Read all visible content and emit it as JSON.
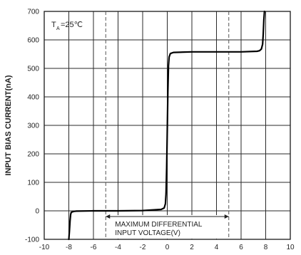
{
  "chart_data": {
    "type": "line",
    "title": "",
    "xlabel": "",
    "ylabel": "INPUT BIAS CURRENT(nA)",
    "xlim": [
      -10,
      10
    ],
    "ylim": [
      -100,
      700
    ],
    "x_ticks": [
      "-10",
      "-8",
      "-6",
      "-4",
      "-2",
      "0",
      "2",
      "4",
      "6",
      "8",
      "10"
    ],
    "y_ticks": [
      "700",
      "600",
      "500",
      "400",
      "300",
      "200",
      "100",
      "0",
      "-100"
    ],
    "grid": true,
    "condition": {
      "symbol": "T",
      "subscript": "A",
      "value": "=25℃"
    },
    "series": [
      {
        "x": [
          -8.0,
          -7.95,
          -7.9,
          -7.85,
          -7.8,
          -7.6,
          -7.4,
          -6.0,
          -4.0,
          -2.0,
          -0.5,
          -0.25,
          -0.15,
          -0.1,
          -0.05,
          0.0,
          0.05,
          0.1,
          0.15,
          0.25,
          0.5,
          2.0,
          4.0,
          6.0,
          7.3,
          7.5,
          7.65,
          7.75,
          7.8,
          7.85,
          7.9
        ],
        "y": [
          -100,
          -70,
          -35,
          -12,
          -5,
          -2,
          -1,
          0,
          0,
          1,
          5,
          10,
          25,
          60,
          150,
          280,
          420,
          510,
          540,
          552,
          556,
          558,
          558,
          558,
          560,
          562,
          568,
          585,
          620,
          670,
          700
        ]
      }
    ],
    "reference_lines": [
      {
        "x": -5,
        "style": "dashed"
      },
      {
        "x": 5,
        "style": "dashed"
      }
    ],
    "annotation": {
      "lines": [
        "MAXIMUM DIFFERENTIAL",
        "INPUT VOLTAGE(V)"
      ],
      "from_x": -5,
      "to_x": 5,
      "at_y": -20
    }
  }
}
